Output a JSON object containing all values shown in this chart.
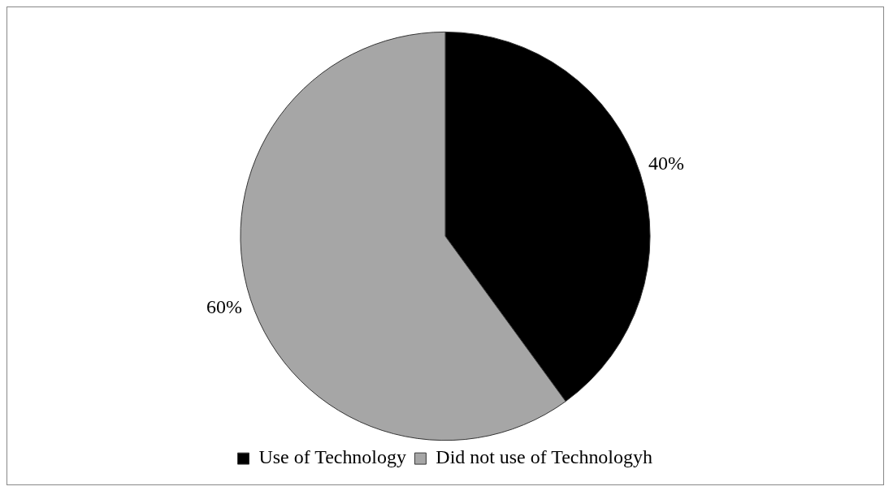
{
  "chart_data": {
    "type": "pie",
    "categories": [
      "Use of Technology",
      "Did not use of Technologyh"
    ],
    "values": [
      40,
      60
    ],
    "colors": [
      "#000000",
      "#a6a6a6"
    ],
    "value_labels": [
      "40%",
      "60%"
    ],
    "legend": "bottom"
  }
}
